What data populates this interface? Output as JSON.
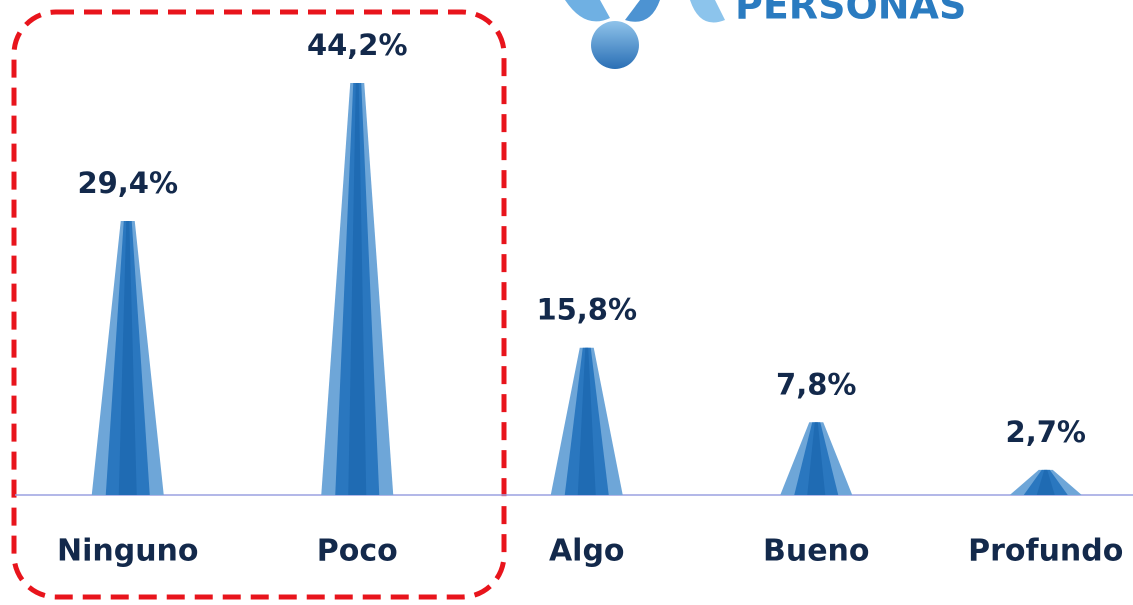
{
  "chart_data": {
    "type": "cone",
    "logo_text": "PERSONAS",
    "categories": [
      "Ninguno",
      "Poco",
      "Algo",
      "Bueno",
      "Profundo"
    ],
    "values": [
      29.4,
      44.2,
      15.8,
      7.8,
      2.7
    ],
    "value_labels": [
      "29,4%",
      "44,2%",
      "15,8%",
      "7,8%",
      "2,7%"
    ],
    "color": "#2a77bf",
    "ylim": [
      0,
      50
    ]
  }
}
